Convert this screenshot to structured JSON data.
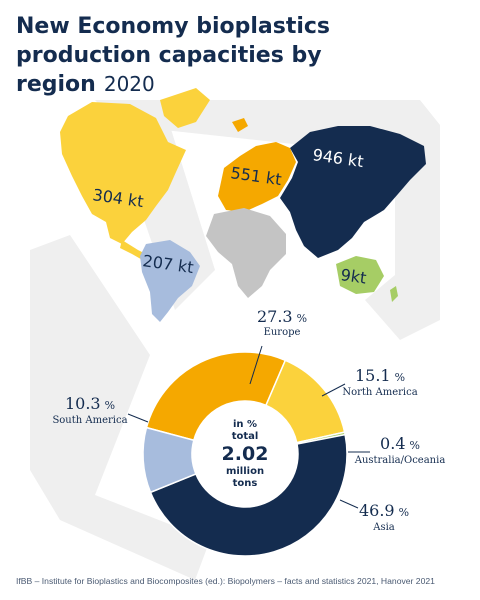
{
  "title": {
    "main": "New Economy bioplastics production capacities by region",
    "year": "2020"
  },
  "center": {
    "line1": "in %",
    "line2": "total",
    "value": "2.02",
    "line3": "million",
    "line4": "tons"
  },
  "percent_sign": "%",
  "source": "IfBB – Institute for Bioplastics and Biocomposites (ed.): Biopolymers – facts and statistics 2021, Hanover 2021",
  "colors": {
    "europe": "#f5a800",
    "north_america": "#fbd23c",
    "australia_oceania": "#a6cd65",
    "asia": "#142c4f",
    "south_america": "#a7bcdd",
    "africa": "#c4c4c4",
    "background_shape": "#efefef"
  },
  "chart_data": {
    "type": "pie",
    "unit": "%",
    "total_label": "2.02 million tons",
    "slices": [
      {
        "key": "europe",
        "label": "Europe",
        "value": 27.3,
        "display": "27.3"
      },
      {
        "key": "north_america",
        "label": "North America",
        "value": 15.1,
        "display": "15.1"
      },
      {
        "key": "australia_oceania",
        "label": "Australia/Oceania",
        "value": 0.4,
        "display": "0.4"
      },
      {
        "key": "asia",
        "label": "Asia",
        "value": 46.9,
        "display": "46.9"
      },
      {
        "key": "south_america",
        "label": "South America",
        "value": 10.3,
        "display": "10.3"
      }
    ],
    "map_capacities": [
      {
        "region": "North America",
        "value": "304 kt"
      },
      {
        "region": "Europe",
        "value": "551 kt"
      },
      {
        "region": "Asia",
        "value": "946 kt"
      },
      {
        "region": "South America",
        "value": "207 kt"
      },
      {
        "region": "Australia/Oceania",
        "value": "9kt"
      }
    ]
  }
}
